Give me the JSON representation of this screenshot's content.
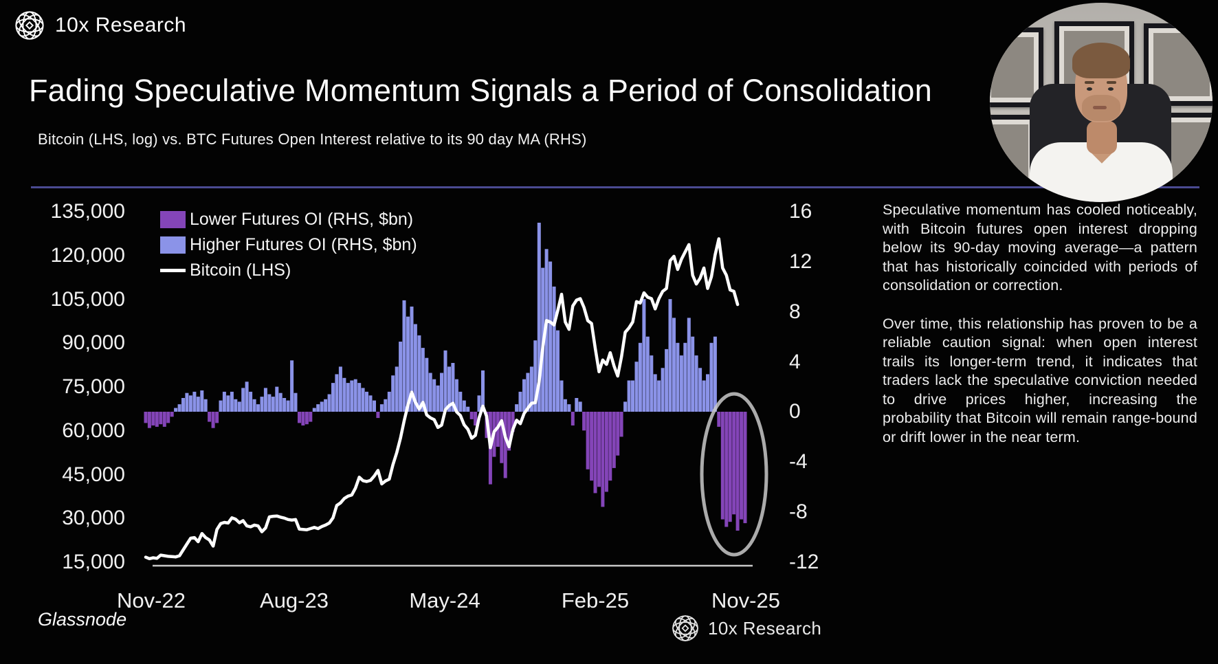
{
  "brand": {
    "name": "10x Research"
  },
  "header": {
    "title": "Fading Speculative Momentum Signals a Period of Consolidation",
    "subtitle": "Bitcoin (LHS, log) vs. BTC Futures Open Interest relative to its 90 day MA (RHS)"
  },
  "legend": {
    "items": [
      {
        "label": "Lower Futures OI (RHS, $bn)"
      },
      {
        "label": "Higher Futures OI (RHS, $bn)"
      },
      {
        "label": "Bitcoin (LHS)"
      }
    ]
  },
  "colors": {
    "lower_oi": "#8445b8",
    "higher_oi": "#8b93e8",
    "bitcoin_line": "#ffffff",
    "separator": "#4a4a92",
    "axis_line": "#c9c9c9",
    "ellipse": "#c9c9c9",
    "background": "#030303"
  },
  "chart": {
    "left_axis": {
      "ticks": [
        "135,000",
        "120,000",
        "105,000",
        "90,000",
        "75,000",
        "60,000",
        "45,000",
        "30,000",
        "15,000"
      ]
    },
    "right_axis": {
      "ticks": [
        "16",
        "12",
        "8",
        "4",
        "0",
        "-4",
        "-8",
        "-12"
      ]
    },
    "x_axis": {
      "ticks": [
        "Nov-22",
        "Aug-23",
        "May-24",
        "Feb-25",
        "Nov-25"
      ]
    },
    "source": "Glassnode",
    "watermark": "10x Research"
  },
  "chart_data": {
    "type": "bar+line",
    "title": "Fading Speculative Momentum Signals a Period of Consolidation",
    "x_unit": "weeks from Nov-2022 to Nov-2025",
    "x_tick_labels": [
      "Nov-22",
      "Aug-23",
      "May-24",
      "Feb-25",
      "Nov-25"
    ],
    "left_axis_label": "Bitcoin price, USD (LHS, log)",
    "right_axis_label": "BTC Futures Open Interest relative to its 90 day MA ($bn, RHS)",
    "left_ylim": [
      15000,
      135000
    ],
    "right_ylim": [
      -12,
      16
    ],
    "grid": false,
    "legend_position": "top-left",
    "annotation": {
      "shape": "ellipse",
      "meaning": "highlights final open-interest plunge",
      "week_center": 157,
      "value_center": -5
    },
    "series": [
      {
        "name": "Futures OI deviation from 90d MA (RHS, $bn; purple below 0, periwinkle above 0)",
        "type": "bar",
        "values": [
          -0.9,
          -1.3,
          -1.1,
          -1.2,
          -1.0,
          -1.2,
          -0.9,
          -0.4,
          0.3,
          0.6,
          1.1,
          1.5,
          1.3,
          1.6,
          1.2,
          1.7,
          1.0,
          -0.8,
          -1.3,
          -0.9,
          0.9,
          1.6,
          1.3,
          1.6,
          1.0,
          0.8,
          1.9,
          2.4,
          1.6,
          1.0,
          0.6,
          1.2,
          1.9,
          1.4,
          1.2,
          2.0,
          1.5,
          1.1,
          0.9,
          4.1,
          1.5,
          -0.9,
          -1.1,
          -1.0,
          -0.8,
          0.3,
          0.6,
          0.8,
          1.0,
          1.4,
          2.3,
          3.0,
          3.6,
          2.7,
          2.3,
          2.5,
          2.6,
          2.3,
          1.9,
          1.6,
          1.3,
          0.9,
          -0.5,
          0.6,
          1.0,
          1.6,
          2.9,
          3.6,
          5.6,
          8.9,
          7.6,
          8.4,
          7.0,
          6.1,
          5.1,
          4.3,
          3.1,
          2.6,
          2.1,
          3.1,
          4.9,
          3.6,
          3.9,
          2.6,
          1.6,
          0.9,
          0.4,
          -0.6,
          -1.1,
          1.3,
          3.3,
          -2.1,
          -5.8,
          -3.6,
          -2.8,
          -4.1,
          -5.3,
          -3.1,
          -1.6,
          0.6,
          1.6,
          2.6,
          3.1,
          3.6,
          5.7,
          15.1,
          11.5,
          13.0,
          12.0,
          10.0,
          6.5,
          2.5,
          1.0,
          0.6,
          -1.1,
          1.1,
          0.8,
          -1.5,
          -4.6,
          -5.5,
          -6.5,
          -6.0,
          -7.6,
          -6.4,
          -5.5,
          -4.5,
          -3.5,
          -2.0,
          0.8,
          2.5,
          2.5,
          4.0,
          5.5,
          9.0,
          6.0,
          4.5,
          3.0,
          2.5,
          3.5,
          5.0,
          9.0,
          7.5,
          5.5,
          4.5,
          5.5,
          7.5,
          6.0,
          4.5,
          3.5,
          2.5,
          3.0,
          5.5,
          6.0,
          -1.2,
          -8.6,
          -9.2,
          -8.8,
          -8.2,
          -9.5,
          -8.6,
          -8.9
        ]
      },
      {
        "name": "Bitcoin price USD (LHS)",
        "type": "line",
        "values": [
          16500,
          16000,
          16300,
          16100,
          17200,
          17000,
          16800,
          16700,
          16600,
          17000,
          19000,
          21000,
          23000,
          23200,
          21800,
          24600,
          23200,
          22400,
          20300,
          26000,
          28000,
          28400,
          28200,
          30000,
          29500,
          28300,
          29000,
          27200,
          26900,
          27500,
          27200,
          25200,
          26500,
          30300,
          30500,
          30600,
          30200,
          29900,
          29400,
          29200,
          29400,
          26100,
          26000,
          25900,
          26300,
          26700,
          26300,
          27000,
          27500,
          28200,
          30000,
          34200,
          35100,
          36600,
          37400,
          37800,
          40200,
          43900,
          42700,
          42400,
          42800,
          44300,
          46200,
          41600,
          42600,
          43200,
          48200,
          52300,
          57200,
          63200,
          68600,
          73000,
          69500,
          67200,
          69500,
          65200,
          64200,
          63600,
          60900,
          61700,
          67000,
          68400,
          69200,
          66200,
          65000,
          61800,
          60300,
          57200,
          58200,
          64200,
          68200,
          64700,
          54000,
          59500,
          61000,
          63200,
          57600,
          54300,
          60200,
          63400,
          62200,
          65700,
          67500,
          69200,
          69400,
          76500,
          88500,
          97500,
          97000,
          96000,
          101000,
          106500,
          97000,
          94500,
          102500,
          104500,
          105000,
          102000,
          97500,
          96500,
          88000,
          80000,
          84000,
          82500,
          86500,
          82000,
          78500,
          85000,
          93500,
          95000,
          97000,
          104000,
          103500,
          107000,
          105500,
          105000,
          101500,
          105000,
          107500,
          108500,
          118000,
          119500,
          115000,
          118500,
          121000,
          123500,
          113000,
          110000,
          112000,
          115500,
          108500,
          112500,
          120000,
          125500,
          115500,
          113000,
          108000,
          107500,
          103000,
          null,
          null
        ]
      }
    ]
  },
  "panel": {
    "paragraphs": [
      "Speculative momentum has cooled noticeably, with Bitcoin futures open interest dropping below its 90-day moving average—a pattern that has historically coincided with periods of consolidation or correction.",
      "Over time, this relationship has proven to be a reliable caution signal: when open interest trails its longer-term trend, it indicates that traders lack the speculative conviction needed to drive prices higher, increasing the probability that Bitcoin will remain range-bound or drift lower in the near term."
    ]
  }
}
